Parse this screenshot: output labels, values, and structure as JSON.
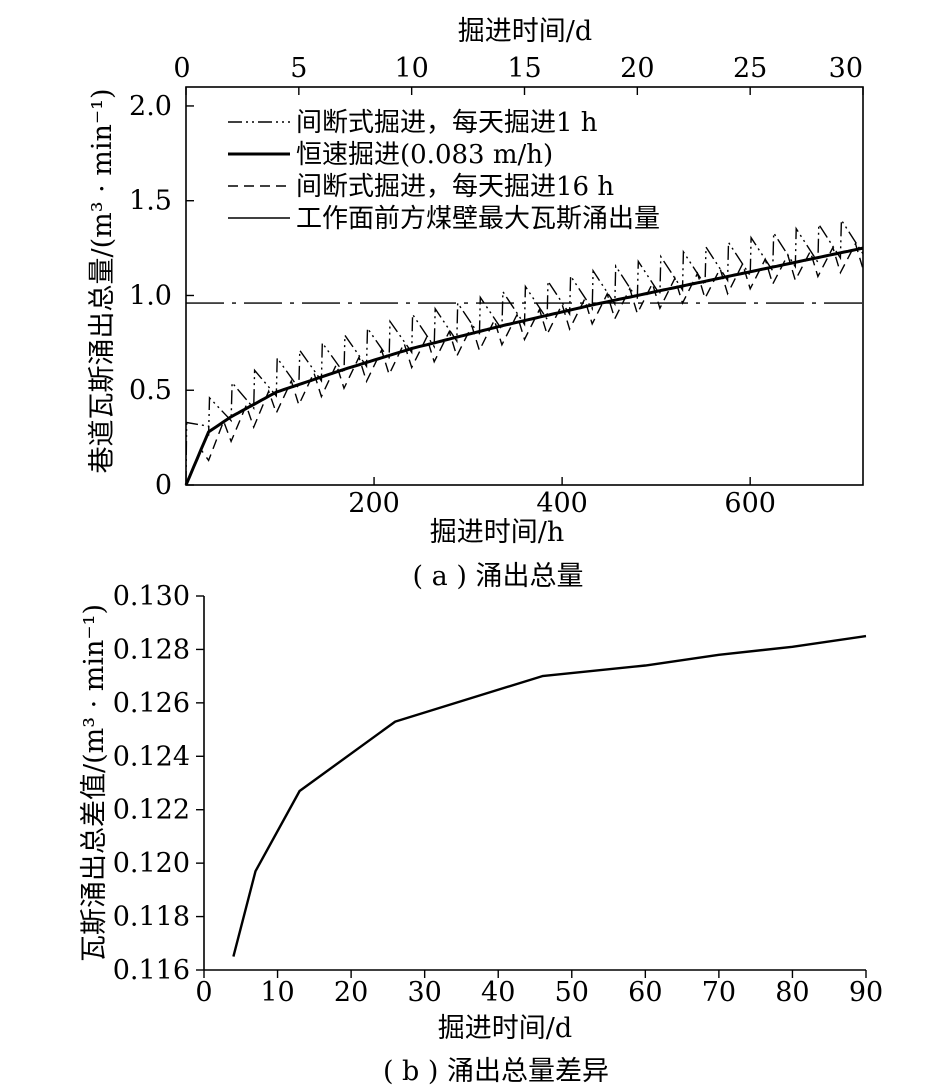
{
  "chart_data": [
    {
      "id": "a",
      "type": "line",
      "caption": "( a ) 涌出总量",
      "xlabel": "掘进时间/h",
      "ylabel": "巷道瓦斯涌出总量/(m³ · min⁻¹)",
      "x2label": "掘进时间/d",
      "xlim": [
        0,
        720
      ],
      "ylim": [
        0,
        2.1
      ],
      "x2lim": [
        0,
        30
      ],
      "xticks": [
        200,
        400,
        600
      ],
      "xtick_labels": [
        "200",
        "400",
        "600"
      ],
      "x2ticks": [
        0,
        5,
        10,
        15,
        20,
        25,
        30
      ],
      "x2tick_labels": [
        "0",
        "5",
        "10",
        "15",
        "20",
        "25",
        "30"
      ],
      "yticks": [
        0,
        0.5,
        1.0,
        1.5,
        2.0
      ],
      "ytick_labels": [
        "0",
        "0.5",
        "1.0",
        "1.5",
        "2.0"
      ],
      "legend_position": "top-left",
      "legend": [
        "间断式掘进，每天掘进1 h",
        "恒速掘进(0.083 m/h)",
        "间断式掘进，每天掘进16 h",
        "工作面前方煤壁最大瓦斯涌出量"
      ],
      "series": [
        {
          "name": "间断式掘进，每天掘进1 h",
          "style": "dash-dot-dot",
          "model": "intermittent-1h",
          "x": [
            0,
            24,
            48,
            96,
            168,
            240,
            336,
            432,
            528,
            624,
            720
          ],
          "y": [
            0,
            0.29,
            0.37,
            0.5,
            0.62,
            0.73,
            0.85,
            0.96,
            1.06,
            1.16,
            1.25
          ]
        },
        {
          "name": "恒速掘进(0.083 m/h)",
          "style": "thick-solid",
          "model": "constant",
          "x": [
            0,
            24,
            48,
            96,
            168,
            240,
            336,
            432,
            528,
            624,
            720
          ],
          "y": [
            0,
            0.28,
            0.36,
            0.49,
            0.61,
            0.72,
            0.84,
            0.95,
            1.05,
            1.15,
            1.25
          ]
        },
        {
          "name": "间断式掘进，每天掘进16 h",
          "style": "dashed",
          "model": "intermittent-16h",
          "x": [
            0,
            24,
            48,
            96,
            168,
            240,
            336,
            432,
            528,
            624,
            720
          ],
          "y": [
            0,
            0.25,
            0.35,
            0.5,
            0.63,
            0.74,
            0.86,
            0.97,
            1.08,
            1.18,
            1.26
          ]
        },
        {
          "name": "工作面前方煤壁最大瓦斯涌出量",
          "style": "dash-dot-long",
          "model": "flat",
          "x": [
            0,
            720
          ],
          "y": [
            0.96,
            0.96
          ]
        }
      ]
    },
    {
      "id": "b",
      "type": "line",
      "caption": "( b ) 涌出总量差异",
      "xlabel": "掘进时间/d",
      "ylabel": "瓦斯涌出总差值/(m³ · min⁻¹)",
      "xlim": [
        0,
        90
      ],
      "ylim": [
        0.116,
        0.13
      ],
      "xticks": [
        0,
        10,
        20,
        30,
        40,
        50,
        60,
        70,
        80,
        90
      ],
      "xtick_labels": [
        "0",
        "10",
        "20",
        "30",
        "40",
        "50",
        "60",
        "70",
        "80",
        "90"
      ],
      "yticks": [
        0.116,
        0.118,
        0.12,
        0.122,
        0.124,
        0.126,
        0.128,
        0.13
      ],
      "ytick_labels": [
        "0.116",
        "0.118",
        "0.120",
        "0.122",
        "0.124",
        "0.126",
        "0.128",
        "0.130"
      ],
      "series": [
        {
          "style": "solid",
          "x": [
            4,
            7,
            13,
            26,
            46,
            60,
            70,
            80,
            90
          ],
          "y": [
            0.1165,
            0.1197,
            0.1227,
            0.1253,
            0.127,
            0.1274,
            0.1278,
            0.1281,
            0.1285
          ]
        }
      ]
    }
  ]
}
